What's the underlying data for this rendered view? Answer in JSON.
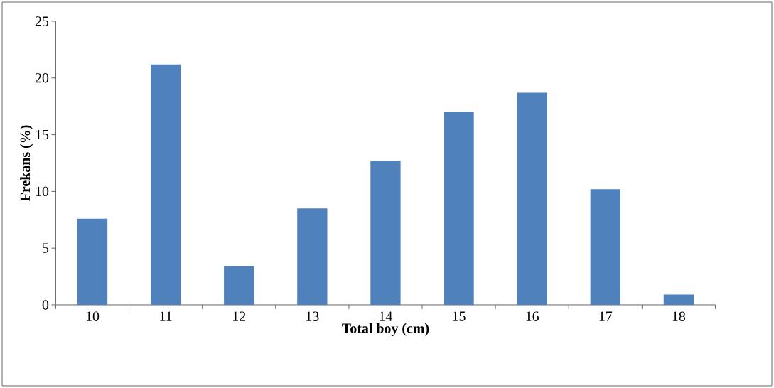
{
  "chart_data": {
    "type": "bar",
    "xlabel": "Total boy (cm)",
    "ylabel": "Frekans (%)",
    "categories": [
      "10",
      "11",
      "12",
      "13",
      "14",
      "15",
      "16",
      "17",
      "18"
    ],
    "values": [
      7.6,
      21.2,
      3.4,
      8.5,
      12.7,
      17.0,
      18.7,
      10.2,
      0.9
    ],
    "color": "#4f81bd",
    "ylim": [
      0,
      25
    ],
    "yticks": [
      0,
      5,
      10,
      15,
      20,
      25
    ]
  }
}
